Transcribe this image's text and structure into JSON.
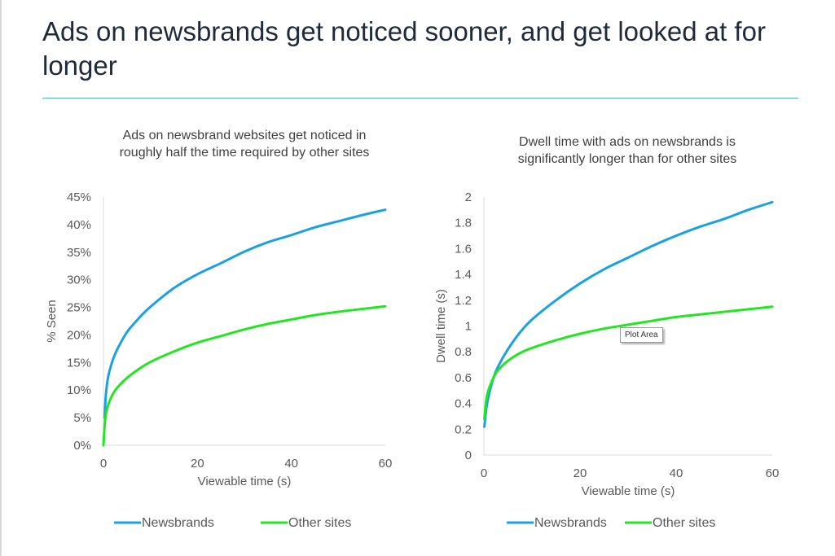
{
  "page": {
    "title": "Ads on newsbrands get noticed sooner, and get looked at for longer",
    "tooltip": "Plot Area"
  },
  "colors": {
    "newsbrands": "#1ba1e2",
    "other_sites": "#22e622",
    "rule": "#4fb3b3"
  },
  "chart_data": [
    {
      "type": "line",
      "title_lines": [
        "Ads on newsbrand websites get noticed in",
        "roughly half the time required by other sites"
      ],
      "xlabel": "Viewable time (s)",
      "ylabel": "% Seen",
      "xlim": [
        0,
        60
      ],
      "ylim": [
        0,
        0.45
      ],
      "xticks": [
        0,
        20,
        40,
        60
      ],
      "xtick_labels": [
        "0",
        "20",
        "40",
        "60"
      ],
      "yticks": [
        0,
        0.05,
        0.1,
        0.15,
        0.2,
        0.25,
        0.3,
        0.35,
        0.4,
        0.45
      ],
      "ytick_labels": [
        "0%",
        "5%",
        "10%",
        "15%",
        "20%",
        "25%",
        "30%",
        "35%",
        "40%",
        "45%"
      ],
      "grid": false,
      "legend": "bottom",
      "series": [
        {
          "name": "Newsbrands",
          "color": "#1ba1e2",
          "x": [
            0.25,
            0.5,
            1,
            2,
            3,
            5,
            7.5,
            10,
            15,
            20,
            25,
            30,
            35,
            40,
            45,
            50,
            55,
            60
          ],
          "y": [
            0.05,
            0.09,
            0.124,
            0.155,
            0.175,
            0.205,
            0.23,
            0.251,
            0.285,
            0.31,
            0.33,
            0.351,
            0.368,
            0.381,
            0.395,
            0.406,
            0.417,
            0.427
          ]
        },
        {
          "name": "Other sites",
          "color": "#22e622",
          "x": [
            0,
            0.25,
            0.5,
            1,
            2,
            3,
            5,
            7.5,
            10,
            15,
            20,
            25,
            30,
            35,
            40,
            45,
            50,
            55,
            60
          ],
          "y": [
            0,
            0.035,
            0.055,
            0.073,
            0.093,
            0.105,
            0.122,
            0.138,
            0.151,
            0.17,
            0.186,
            0.198,
            0.21,
            0.22,
            0.228,
            0.236,
            0.242,
            0.247,
            0.252
          ]
        }
      ]
    },
    {
      "type": "line",
      "title_lines": [
        "Dwell time with ads on newsbrands is",
        "significantly longer than for other sites"
      ],
      "xlabel": "Viewable time (s)",
      "ylabel": "Dwell time (s)",
      "xlim": [
        0,
        60
      ],
      "ylim": [
        0,
        2
      ],
      "xticks": [
        0,
        20,
        40,
        60
      ],
      "xtick_labels": [
        "0",
        "20",
        "40",
        "60"
      ],
      "yticks": [
        0,
        0.2,
        0.4,
        0.6,
        0.8,
        1.0,
        1.2,
        1.4,
        1.6,
        1.8,
        2.0
      ],
      "ytick_labels": [
        "0",
        "0.2",
        "0.4",
        "0.6",
        "0.8",
        "1",
        "1.2",
        "1.4",
        "1.6",
        "1.8",
        "2"
      ],
      "grid": false,
      "legend": "bottom",
      "series": [
        {
          "name": "Newsbrands",
          "color": "#1ba1e2",
          "x": [
            0.1,
            0.5,
            1,
            2,
            3,
            5,
            7.5,
            10,
            15,
            20,
            25,
            30,
            35,
            40,
            45,
            50,
            55,
            60
          ],
          "y": [
            0.22,
            0.36,
            0.46,
            0.6,
            0.69,
            0.82,
            0.95,
            1.05,
            1.2,
            1.33,
            1.44,
            1.53,
            1.62,
            1.7,
            1.77,
            1.83,
            1.9,
            1.96
          ]
        },
        {
          "name": "Other sites",
          "color": "#22e622",
          "x": [
            0.1,
            0.5,
            1,
            2,
            3,
            5,
            7.5,
            10,
            15,
            20,
            25,
            30,
            35,
            40,
            45,
            50,
            55,
            60
          ],
          "y": [
            0.28,
            0.43,
            0.51,
            0.6,
            0.66,
            0.73,
            0.79,
            0.83,
            0.89,
            0.94,
            0.98,
            1.01,
            1.04,
            1.07,
            1.09,
            1.11,
            1.13,
            1.15
          ]
        }
      ]
    }
  ]
}
